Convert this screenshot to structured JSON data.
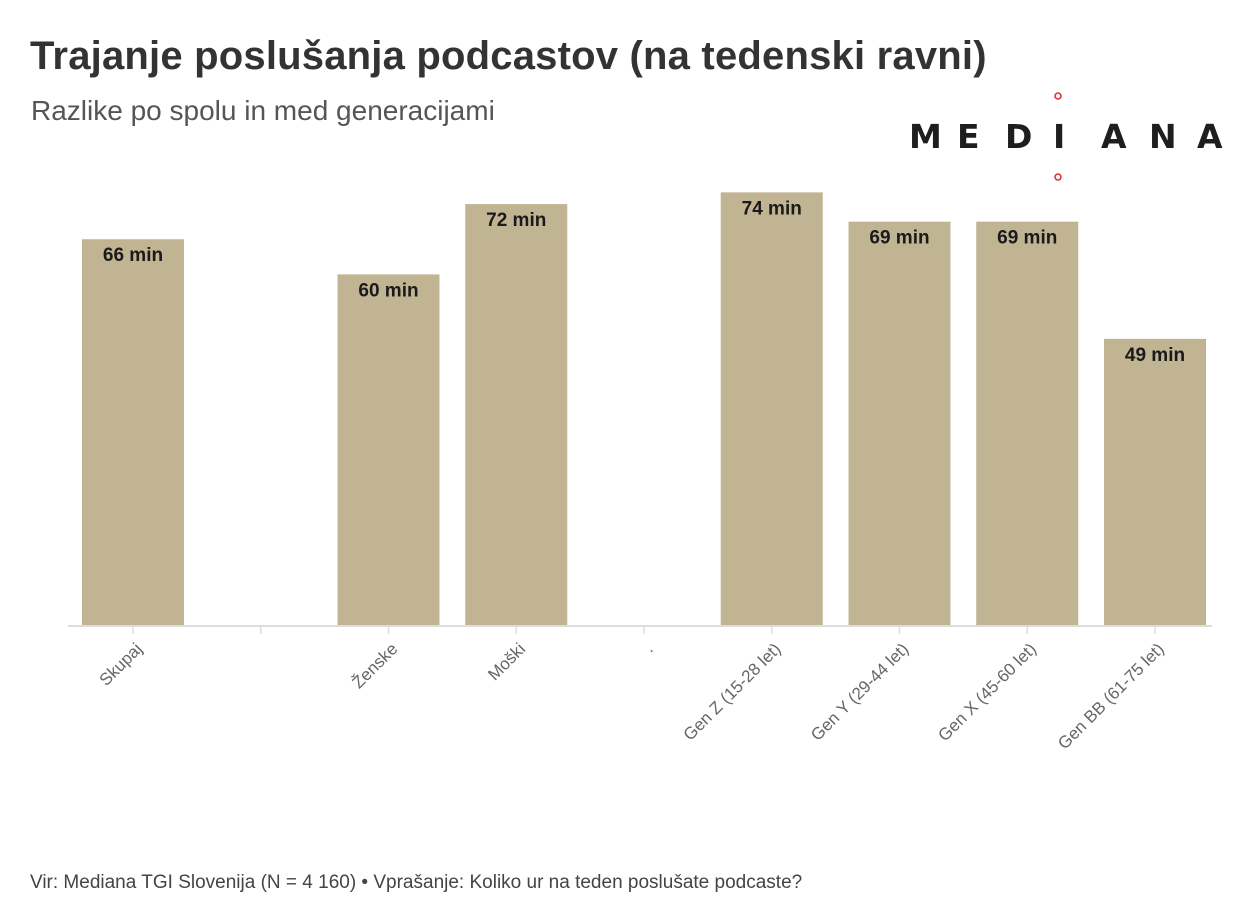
{
  "title": "Trajanje poslušanja podcastov (na tedenski ravni)",
  "subtitle": "Razlike po spolu in med generacijami",
  "logo": {
    "text": "MEDIANA",
    "accent_color": "#e0323a"
  },
  "footer": "Vir: Mediana TGI Slovenija (N = 4 160) • Vprašanje: Koliko ur na teden poslušate podcaste?",
  "colors": {
    "bar": "#c1b493",
    "axis": "#dddddd",
    "label": "#666666"
  },
  "chart_data": {
    "type": "bar",
    "title": "Trajanje poslušanja podcastov (na tedenski ravni)",
    "subtitle": "Razlike po spolu in med generacijami",
    "categories": [
      "Skupaj",
      "",
      "Ženske",
      "Moški",
      ".",
      "Gen Z (15-28 let)",
      "Gen Y (29-44 let)",
      "Gen X (45-60 let)",
      "Gen BB (61-75 let)"
    ],
    "values": [
      66,
      null,
      60,
      72,
      null,
      74,
      69,
      69,
      49
    ],
    "data_labels": [
      "66 min",
      "",
      "60 min",
      "72 min",
      "",
      "74 min",
      "69 min",
      "69 min",
      "49 min"
    ],
    "unit": "min",
    "xlabel": "",
    "ylabel": "",
    "ylim": [
      0,
      80
    ],
    "grid": false,
    "legend": "none"
  }
}
